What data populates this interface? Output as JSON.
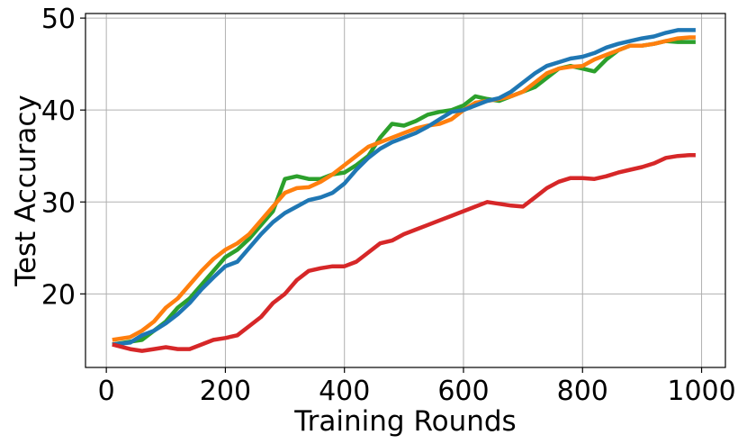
{
  "chart_data": {
    "type": "line",
    "title": "",
    "xlabel": "Training Rounds",
    "ylabel": "Test Accuracy",
    "xlim": [
      -35,
      1040
    ],
    "ylim": [
      12,
      50.5
    ],
    "xticks": [
      0,
      200,
      400,
      600,
      800,
      1000
    ],
    "yticks": [
      20,
      30,
      40,
      50
    ],
    "grid": true,
    "legend": "none",
    "series": [
      {
        "color": "#2ca02c",
        "x": [
          10,
          40,
          60,
          80,
          100,
          120,
          140,
          160,
          180,
          200,
          220,
          240,
          260,
          280,
          300,
          320,
          340,
          360,
          380,
          400,
          420,
          440,
          460,
          480,
          500,
          520,
          540,
          560,
          580,
          600,
          620,
          640,
          660,
          680,
          700,
          720,
          740,
          760,
          780,
          800,
          820,
          840,
          860,
          880,
          900,
          920,
          940,
          960,
          980,
          990
        ],
        "y": [
          14.5,
          14.8,
          15.0,
          16.0,
          17.0,
          18.5,
          19.5,
          21.0,
          22.5,
          24.0,
          24.8,
          26.0,
          27.5,
          29.0,
          32.5,
          32.8,
          32.5,
          32.5,
          33.0,
          33.2,
          34.0,
          35.0,
          37.0,
          38.5,
          38.3,
          38.8,
          39.5,
          39.8,
          40.0,
          40.5,
          41.5,
          41.2,
          41.0,
          41.5,
          42.0,
          42.5,
          43.5,
          44.5,
          44.8,
          44.5,
          44.2,
          45.5,
          46.5,
          47.0,
          47.0,
          47.2,
          47.5,
          47.4,
          47.4,
          47.4
        ]
      },
      {
        "color": "#ff7f0e",
        "x": [
          10,
          40,
          60,
          80,
          100,
          120,
          140,
          160,
          180,
          200,
          220,
          240,
          260,
          280,
          300,
          320,
          340,
          360,
          380,
          400,
          420,
          440,
          460,
          480,
          500,
          520,
          540,
          560,
          580,
          600,
          620,
          640,
          660,
          680,
          700,
          720,
          740,
          760,
          780,
          800,
          820,
          840,
          860,
          880,
          900,
          920,
          940,
          960,
          980,
          990
        ],
        "y": [
          15.0,
          15.3,
          16.0,
          17.0,
          18.5,
          19.5,
          21.0,
          22.5,
          23.8,
          24.8,
          25.5,
          26.5,
          28.0,
          29.5,
          31.0,
          31.5,
          31.6,
          32.2,
          33.0,
          34.0,
          35.0,
          36.0,
          36.5,
          37.0,
          37.5,
          38.0,
          38.3,
          38.5,
          39.0,
          40.0,
          40.8,
          41.0,
          41.2,
          41.5,
          42.0,
          43.0,
          44.0,
          44.5,
          44.7,
          44.8,
          45.5,
          46.0,
          46.5,
          47.0,
          47.0,
          47.2,
          47.5,
          47.8,
          47.9,
          47.9
        ]
      },
      {
        "color": "#1f77b4",
        "x": [
          10,
          40,
          60,
          80,
          100,
          120,
          140,
          160,
          180,
          200,
          220,
          240,
          260,
          280,
          300,
          320,
          340,
          360,
          380,
          400,
          420,
          440,
          460,
          480,
          500,
          520,
          540,
          560,
          580,
          600,
          620,
          640,
          660,
          680,
          700,
          720,
          740,
          760,
          780,
          800,
          820,
          840,
          860,
          880,
          900,
          920,
          940,
          960,
          980,
          990
        ],
        "y": [
          14.5,
          14.7,
          15.5,
          16.0,
          16.8,
          17.8,
          19.0,
          20.5,
          21.8,
          23.0,
          23.5,
          25.0,
          26.5,
          27.8,
          28.8,
          29.5,
          30.2,
          30.5,
          31.0,
          32.0,
          33.5,
          34.8,
          35.8,
          36.5,
          37.0,
          37.5,
          38.2,
          39.0,
          39.8,
          40.0,
          40.5,
          41.0,
          41.3,
          42.0,
          43.0,
          44.0,
          44.8,
          45.2,
          45.6,
          45.8,
          46.2,
          46.8,
          47.2,
          47.5,
          47.8,
          48.0,
          48.4,
          48.7,
          48.7,
          48.7
        ]
      },
      {
        "color": "#d62728",
        "x": [
          10,
          40,
          60,
          80,
          100,
          120,
          140,
          160,
          180,
          200,
          220,
          240,
          260,
          280,
          300,
          320,
          340,
          360,
          380,
          400,
          420,
          440,
          460,
          480,
          500,
          520,
          540,
          560,
          580,
          600,
          620,
          640,
          660,
          680,
          700,
          720,
          740,
          760,
          780,
          800,
          820,
          840,
          860,
          880,
          900,
          920,
          940,
          960,
          980,
          990
        ],
        "y": [
          14.5,
          14.0,
          13.8,
          14.0,
          14.2,
          14.0,
          14.0,
          14.5,
          15.0,
          15.2,
          15.5,
          16.5,
          17.5,
          19.0,
          20.0,
          21.5,
          22.5,
          22.8,
          23.0,
          23.0,
          23.5,
          24.5,
          25.5,
          25.8,
          26.5,
          27.0,
          27.5,
          28.0,
          28.5,
          29.0,
          29.5,
          30.0,
          29.8,
          29.6,
          29.5,
          30.5,
          31.5,
          32.2,
          32.6,
          32.6,
          32.5,
          32.8,
          33.2,
          33.5,
          33.8,
          34.2,
          34.8,
          35.0,
          35.1,
          35.1
        ]
      }
    ]
  }
}
